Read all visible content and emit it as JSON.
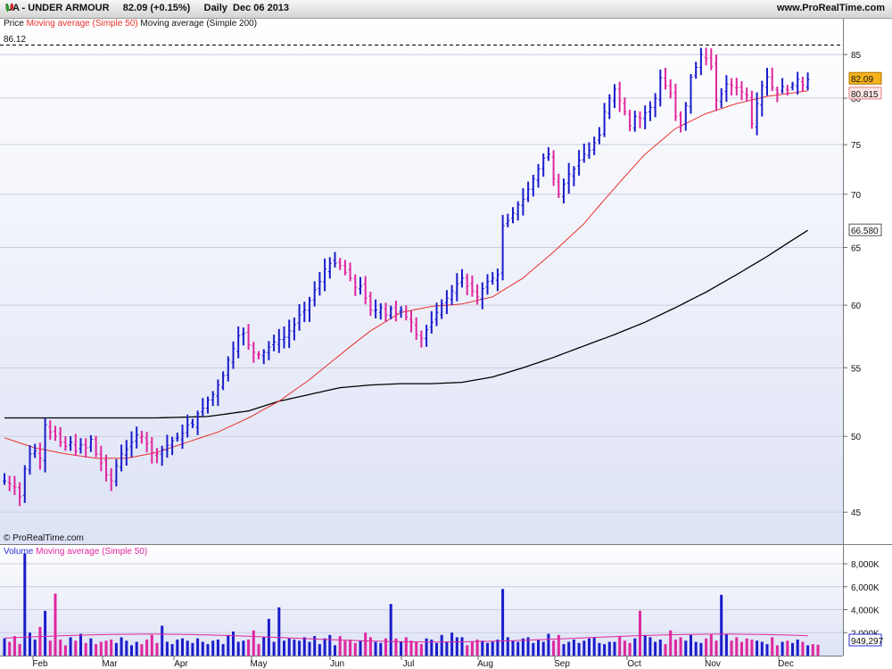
{
  "header": {
    "symbol": "UA - UNDER ARMOUR",
    "price": "82.09",
    "change": "(+0.15%)",
    "period": "Daily",
    "date": "Dec 06 2013",
    "site": "www.ProRealTime.com"
  },
  "price_panel": {
    "legend": {
      "price": "Price",
      "ma50": "Moving average (Simple 50)",
      "ma200": "Moving average (Simple 200)"
    },
    "high_label": "86.12",
    "watermark": "© ProRealTime.com",
    "yticks": [
      "85",
      "80",
      "75",
      "70",
      "65",
      "60",
      "55",
      "50",
      "45"
    ],
    "badges": {
      "last": "82.09",
      "ma50": "80.815",
      "ma200": "66.580"
    }
  },
  "volume_panel": {
    "legend": {
      "volume": "Volume",
      "ma50": "Moving average (Simple 50)"
    },
    "yticks": [
      "8,000K",
      "6,000K",
      "4,000K",
      "2,000K"
    ],
    "badge": "949,297"
  },
  "xaxis": {
    "months": [
      "Feb",
      "Mar",
      "Apr",
      "May",
      "Jun",
      "Jul",
      "Aug",
      "Sep",
      "Oct",
      "Nov",
      "Dec"
    ]
  },
  "colors": {
    "up": "#1a1ccc",
    "down": "#e0269e",
    "ma50": "#e8312a",
    "ma200": "#000000",
    "panel_top": "#ffffff",
    "panel_bottom": "#dde2f5",
    "last_badge": "#f3b21c",
    "ma50_badge": "#fde6e6"
  },
  "chart_data": [
    {
      "type": "ohlc",
      "title": "UA - UNDER ARMOUR",
      "period": "Daily",
      "y_scale": "log",
      "ylim": [
        43.8,
        87.8
      ],
      "grid": true,
      "x_months": [
        "Feb",
        "Mar",
        "Apr",
        "May",
        "Jun",
        "Jul",
        "Aug",
        "Sep",
        "Oct",
        "Nov",
        "Dec"
      ],
      "series": [
        {
          "name": "Price",
          "close_path": [
            [
              0,
              47.0
            ],
            [
              2,
              46.6
            ],
            [
              3,
              46.0
            ],
            [
              4,
              47.8
            ],
            [
              5,
              48.8
            ],
            [
              6,
              49.0
            ],
            [
              7,
              48.5
            ],
            [
              8,
              50.8
            ],
            [
              9,
              50.3
            ],
            [
              10,
              50.0
            ],
            [
              11,
              49.6
            ],
            [
              12,
              49.3
            ],
            [
              13,
              49.6
            ],
            [
              14,
              49.0
            ],
            [
              15,
              49.4
            ],
            [
              16,
              49.2
            ],
            [
              17,
              49.8
            ],
            [
              18,
              48.8
            ],
            [
              19,
              48.2
            ],
            [
              20,
              47.4
            ],
            [
              21,
              47.0
            ],
            [
              22,
              48.0
            ],
            [
              23,
              48.8
            ],
            [
              24,
              49.1
            ],
            [
              25,
              49.6
            ],
            [
              26,
              50.1
            ],
            [
              27,
              50.0
            ],
            [
              28,
              49.5
            ],
            [
              29,
              48.9
            ],
            [
              30,
              48.8
            ],
            [
              31,
              49.1
            ],
            [
              32,
              49.4
            ],
            [
              33,
              49.7
            ],
            [
              34,
              49.9
            ],
            [
              35,
              50.2
            ],
            [
              36,
              50.8
            ],
            [
              37,
              50.8
            ],
            [
              38,
              51.6
            ],
            [
              39,
              52.0
            ],
            [
              40,
              52.6
            ],
            [
              41,
              53.0
            ],
            [
              42,
              53.7
            ],
            [
              43,
              54.4
            ],
            [
              44,
              55.6
            ],
            [
              45,
              56.5
            ],
            [
              46,
              57.5
            ],
            [
              47,
              57.7
            ],
            [
              48,
              56.8
            ],
            [
              49,
              56.2
            ],
            [
              50,
              56.0
            ],
            [
              51,
              56.2
            ],
            [
              52,
              56.6
            ],
            [
              53,
              57.0
            ],
            [
              54,
              57.2
            ],
            [
              55,
              57.4
            ],
            [
              56,
              57.9
            ],
            [
              57,
              58.4
            ],
            [
              58,
              59.2
            ],
            [
              59,
              59.6
            ],
            [
              60,
              60.4
            ],
            [
              61,
              61.3
            ],
            [
              62,
              62.0
            ],
            [
              63,
              63.1
            ],
            [
              64,
              63.6
            ],
            [
              65,
              63.6
            ],
            [
              66,
              63.4
            ],
            [
              67,
              62.8
            ],
            [
              68,
              62.3
            ],
            [
              69,
              61.5
            ],
            [
              70,
              61.6
            ],
            [
              71,
              60.6
            ],
            [
              72,
              59.6
            ],
            [
              73,
              59.6
            ],
            [
              74,
              59.8
            ],
            [
              75,
              59.2
            ],
            [
              76,
              59.7
            ],
            [
              77,
              59.3
            ],
            [
              78,
              59.6
            ],
            [
              79,
              59.0
            ],
            [
              80,
              58.6
            ],
            [
              81,
              57.6
            ],
            [
              82,
              57.3
            ],
            [
              83,
              58.0
            ],
            [
              84,
              58.6
            ],
            [
              85,
              59.4
            ],
            [
              86,
              60.1
            ],
            [
              87,
              60.6
            ],
            [
              88,
              61.2
            ],
            [
              89,
              61.8
            ],
            [
              90,
              62.3
            ],
            [
              91,
              61.6
            ],
            [
              92,
              61.2
            ],
            [
              93,
              60.7
            ],
            [
              94,
              61.4
            ],
            [
              95,
              62.0
            ],
            [
              96,
              62.3
            ],
            [
              97,
              62.6
            ],
            [
              98,
              67.0
            ],
            [
              99,
              67.5
            ],
            [
              100,
              68.2
            ],
            [
              101,
              69.0
            ],
            [
              102,
              69.5
            ],
            [
              103,
              70.5
            ],
            [
              104,
              71.5
            ],
            [
              105,
              72.5
            ],
            [
              106,
              73.6
            ],
            [
              107,
              74.0
            ],
            [
              108,
              71.5
            ],
            [
              109,
              70.0
            ],
            [
              110,
              71.0
            ],
            [
              111,
              72.0
            ],
            [
              112,
              72.5
            ],
            [
              113,
              73.4
            ],
            [
              114,
              74.0
            ],
            [
              115,
              74.4
            ],
            [
              116,
              75.2
            ],
            [
              117,
              76.0
            ],
            [
              118,
              78.5
            ],
            [
              119,
              80.0
            ],
            [
              120,
              81.0
            ],
            [
              121,
              79.7
            ],
            [
              122,
              78.5
            ],
            [
              123,
              77.0
            ],
            [
              124,
              78.0
            ],
            [
              125,
              77.8
            ],
            [
              126,
              78.4
            ],
            [
              127,
              79.0
            ],
            [
              128,
              80.0
            ],
            [
              129,
              82.3
            ],
            [
              130,
              81.4
            ],
            [
              131,
              80.5
            ],
            [
              132,
              78.0
            ],
            [
              133,
              77.0
            ],
            [
              134,
              79.2
            ],
            [
              135,
              82.4
            ],
            [
              136,
              83.5
            ],
            [
              137,
              85.0
            ],
            [
              138,
              84.5
            ],
            [
              139,
              83.6
            ],
            [
              140,
              79.8
            ],
            [
              141,
              80.5
            ],
            [
              142,
              81.6
            ],
            [
              143,
              81.4
            ],
            [
              144,
              81.2
            ],
            [
              145,
              80.7
            ],
            [
              146,
              80.3
            ],
            [
              147,
              77.2
            ],
            [
              148,
              79.4
            ],
            [
              149,
              81.4
            ],
            [
              150,
              82.4
            ],
            [
              151,
              81.2
            ],
            [
              152,
              80.6
            ],
            [
              153,
              81.3
            ],
            [
              154,
              80.9
            ],
            [
              155,
              81.5
            ],
            [
              156,
              82.1
            ],
            [
              157,
              81.5
            ],
            [
              158,
              82.09
            ]
          ]
        },
        {
          "name": "Moving average (Simple 50)",
          "path": [
            [
              0,
              49.9
            ],
            [
              6,
              49.2
            ],
            [
              12,
              48.8
            ],
            [
              18,
              48.5
            ],
            [
              24,
              48.5
            ],
            [
              30,
              48.9
            ],
            [
              36,
              49.6
            ],
            [
              42,
              50.3
            ],
            [
              48,
              51.3
            ],
            [
              54,
              52.5
            ],
            [
              60,
              54.1
            ],
            [
              66,
              56.0
            ],
            [
              72,
              57.9
            ],
            [
              78,
              59.4
            ],
            [
              84,
              59.9
            ],
            [
              90,
              60.1
            ],
            [
              96,
              60.7
            ],
            [
              102,
              62.3
            ],
            [
              108,
              64.6
            ],
            [
              114,
              67.2
            ],
            [
              120,
              70.6
            ],
            [
              126,
              74.0
            ],
            [
              132,
              76.7
            ],
            [
              138,
              78.3
            ],
            [
              144,
              79.4
            ],
            [
              150,
              80.2
            ],
            [
              158,
              80.815
            ]
          ]
        },
        {
          "name": "Moving average (Simple 200)",
          "path": [
            [
              0,
              51.3
            ],
            [
              10,
              51.3
            ],
            [
              20,
              51.3
            ],
            [
              30,
              51.3
            ],
            [
              40,
              51.4
            ],
            [
              48,
              51.8
            ],
            [
              54,
              52.5
            ],
            [
              60,
              53.0
            ],
            [
              66,
              53.5
            ],
            [
              72,
              53.7
            ],
            [
              78,
              53.8
            ],
            [
              84,
              53.8
            ],
            [
              90,
              53.9
            ],
            [
              96,
              54.3
            ],
            [
              102,
              55.0
            ],
            [
              108,
              55.8
            ],
            [
              114,
              56.7
            ],
            [
              120,
              57.6
            ],
            [
              126,
              58.6
            ],
            [
              132,
              59.8
            ],
            [
              138,
              61.1
            ],
            [
              144,
              62.6
            ],
            [
              150,
              64.2
            ],
            [
              158,
              66.58
            ]
          ]
        }
      ],
      "last": 82.09,
      "period_high": 86.12
    },
    {
      "type": "bar",
      "title": "Volume",
      "unit": "K",
      "ylim": [
        0,
        9400
      ],
      "series": [
        {
          "name": "Volume",
          "values_K": [
            1500,
            1200,
            1700,
            1000,
            8900,
            2000,
            1400,
            2500,
            3900,
            1300,
            5400,
            1400,
            900,
            1600,
            1300,
            1900,
            1100,
            1500,
            1000,
            1200,
            1300,
            1400,
            1100,
            1600,
            1300,
            900,
            1200,
            1000,
            1400,
            1800,
            1100,
            2600,
            1200,
            1000,
            1400,
            1500,
            1300,
            1100,
            1500,
            1200,
            1000,
            1300,
            1400,
            1000,
            1800,
            2100,
            1200,
            1300,
            1400,
            2200,
            1000,
            1600,
            3200,
            1200,
            4200,
            1300,
            1500,
            1400,
            1300,
            1600,
            1200,
            1700,
            1000,
            1500,
            1800,
            900,
            1700,
            1300,
            1400,
            1100,
            1300,
            2000,
            1600,
            1200,
            1100,
            1500,
            4500,
            1500,
            1200,
            1600,
            1300,
            1200,
            1000,
            1500,
            1400,
            1100,
            1800,
            1200,
            2000,
            1600,
            1600,
            900,
            1200,
            1400,
            1300,
            1100,
            1200,
            1400,
            5800,
            1600,
            1300,
            1200,
            1500,
            1600,
            1100,
            1400,
            1200,
            1900,
            1300,
            1800,
            1000,
            1200,
            1400,
            1100,
            1300,
            1500,
            1600,
            1100,
            1000,
            1200,
            1200,
            1700,
            1300,
            1100,
            1500,
            3900,
            1800,
            1600,
            1200,
            1400,
            1000,
            2200,
            1400,
            1600,
            1300,
            1800,
            1200,
            1100,
            1500,
            1900,
            1300,
            5300,
            1900,
            1300,
            1600,
            1200,
            1500,
            1400,
            1300,
            1200,
            1000,
            1600,
            900,
            1200,
            1300,
            1100,
            1400,
            1200,
            900,
            1000,
            949.297
          ]
        },
        {
          "name": "Moving average (Simple 50)",
          "approx_level_K": 1700
        }
      ]
    }
  ]
}
